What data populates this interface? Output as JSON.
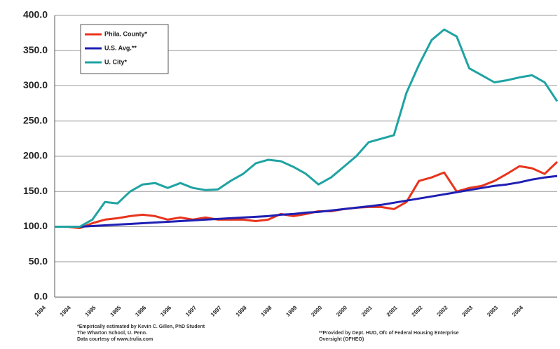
{
  "chart_data": {
    "type": "line",
    "categories": [
      "1994",
      null,
      "1994",
      null,
      "1995",
      null,
      "1995",
      null,
      "1996",
      null,
      "1996",
      null,
      "1997",
      null,
      "1997",
      null,
      "1998",
      null,
      "1998",
      null,
      "1999",
      null,
      "2000",
      null,
      "2000",
      null,
      "2001",
      null,
      "2001",
      null,
      "2002",
      null,
      "2002",
      null,
      "2003",
      null,
      "2003",
      null,
      "2004",
      null,
      null
    ],
    "series": [
      {
        "name": "Phila. County*",
        "color": "#e8341c",
        "values": [
          100,
          100,
          98,
          105,
          110,
          112,
          115,
          117,
          115,
          110,
          113,
          110,
          113,
          110,
          110,
          110,
          108,
          110,
          118,
          115,
          118,
          122,
          122,
          125,
          127,
          128,
          128,
          125,
          135,
          165,
          170,
          177,
          150,
          155,
          158,
          165,
          175,
          186,
          183,
          175,
          192
        ]
      },
      {
        "name": "U.S. Avg.**",
        "color": "#1f1fb4",
        "values": [
          100,
          100,
          100,
          101,
          102,
          103,
          104,
          105,
          106,
          107,
          108,
          109,
          110,
          111,
          112,
          113,
          114,
          115,
          117,
          118,
          120,
          121,
          123,
          125,
          127,
          129,
          131,
          134,
          137,
          140,
          143,
          146,
          149,
          152,
          155,
          158,
          160,
          163,
          167,
          170,
          172
        ]
      },
      {
        "name": "U. City*",
        "color": "#1fa3a3",
        "values": [
          100,
          100,
          100,
          110,
          135,
          133,
          150,
          160,
          162,
          155,
          162,
          155,
          152,
          153,
          165,
          175,
          190,
          195,
          193,
          185,
          175,
          160,
          170,
          185,
          200,
          220,
          225,
          230,
          290,
          330,
          365,
          380,
          370,
          325,
          315,
          305,
          308,
          312,
          315,
          305,
          278
        ]
      }
    ],
    "ylim": [
      0,
      400
    ],
    "yticks": [
      {
        "value": 0,
        "label": "0.0"
      },
      {
        "value": 50,
        "label": "50.0"
      },
      {
        "value": 100,
        "label": "100.0"
      },
      {
        "value": 150,
        "label": "150.0"
      },
      {
        "value": 200,
        "label": "200.0"
      },
      {
        "value": 250,
        "label": "250.0"
      },
      {
        "value": 300,
        "label": "300.0"
      },
      {
        "value": 350,
        "label": "350.0"
      },
      {
        "value": 400,
        "label": "400.0"
      }
    ],
    "grid": true,
    "legend": "upper left",
    "notes_left": [
      "*Empirically estimated by Kevin C. Gillen, PhD Student",
      "The Wharton School, U. Penn.",
      "Data courtesy of www.trulia.com"
    ],
    "notes_right": [
      "**Provided by Dept. HUD, Ofc of Federal Housing Enterprise",
      "Oversight (OFHEO)"
    ]
  }
}
